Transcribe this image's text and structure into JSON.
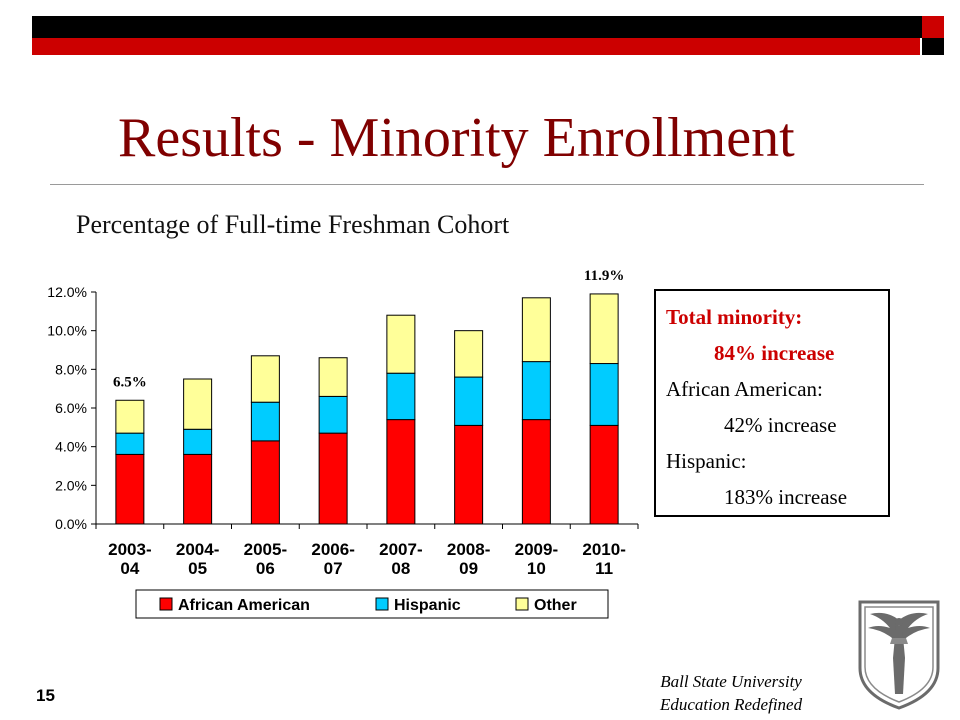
{
  "slide": {
    "title": "Results - Minority Enrollment",
    "subtitle": "Percentage of Full-time Freshman Cohort",
    "page_number": "15",
    "footer_line1": "Ball State University",
    "footer_line2": "Education Redefined"
  },
  "summary": {
    "heading": "Total minority:",
    "total_increase": "84% increase",
    "african_label": "African American:",
    "african_increase": "42% increase",
    "hispanic_label": "Hispanic:",
    "hispanic_increase": "183% increase"
  },
  "chart_data": {
    "type": "bar",
    "stacked": true,
    "categories": [
      "2003-04",
      "2004-05",
      "2005-06",
      "2006-07",
      "2007-08",
      "2008-09",
      "2009-10",
      "2010-11"
    ],
    "category_lines": [
      [
        "2003-",
        "04"
      ],
      [
        "2004-",
        "05"
      ],
      [
        "2005-",
        "06"
      ],
      [
        "2006-",
        "07"
      ],
      [
        "2007-",
        "08"
      ],
      [
        "2008-",
        "09"
      ],
      [
        "2009-",
        "10"
      ],
      [
        "2010-",
        "11"
      ]
    ],
    "series": [
      {
        "name": "African American",
        "color": "#ff0000",
        "values": [
          3.6,
          3.6,
          4.3,
          4.7,
          5.4,
          5.1,
          5.4,
          5.1
        ]
      },
      {
        "name": "Hispanic",
        "color": "#00ccff",
        "values": [
          1.1,
          1.3,
          2.0,
          1.9,
          2.4,
          2.5,
          3.0,
          3.2
        ]
      },
      {
        "name": "Other",
        "color": "#ffff99",
        "values": [
          1.7,
          2.6,
          2.4,
          2.0,
          3.0,
          2.4,
          3.3,
          3.6
        ]
      }
    ],
    "y_ticks": [
      "0.0%",
      "2.0%",
      "4.0%",
      "6.0%",
      "8.0%",
      "10.0%",
      "12.0%"
    ],
    "ylim": [
      0,
      12
    ],
    "annotations": [
      {
        "category_index": 0,
        "text": "6.5%"
      },
      {
        "category_index": 7,
        "text": "11.9%"
      }
    ],
    "legend_position": "bottom",
    "grid": false
  }
}
